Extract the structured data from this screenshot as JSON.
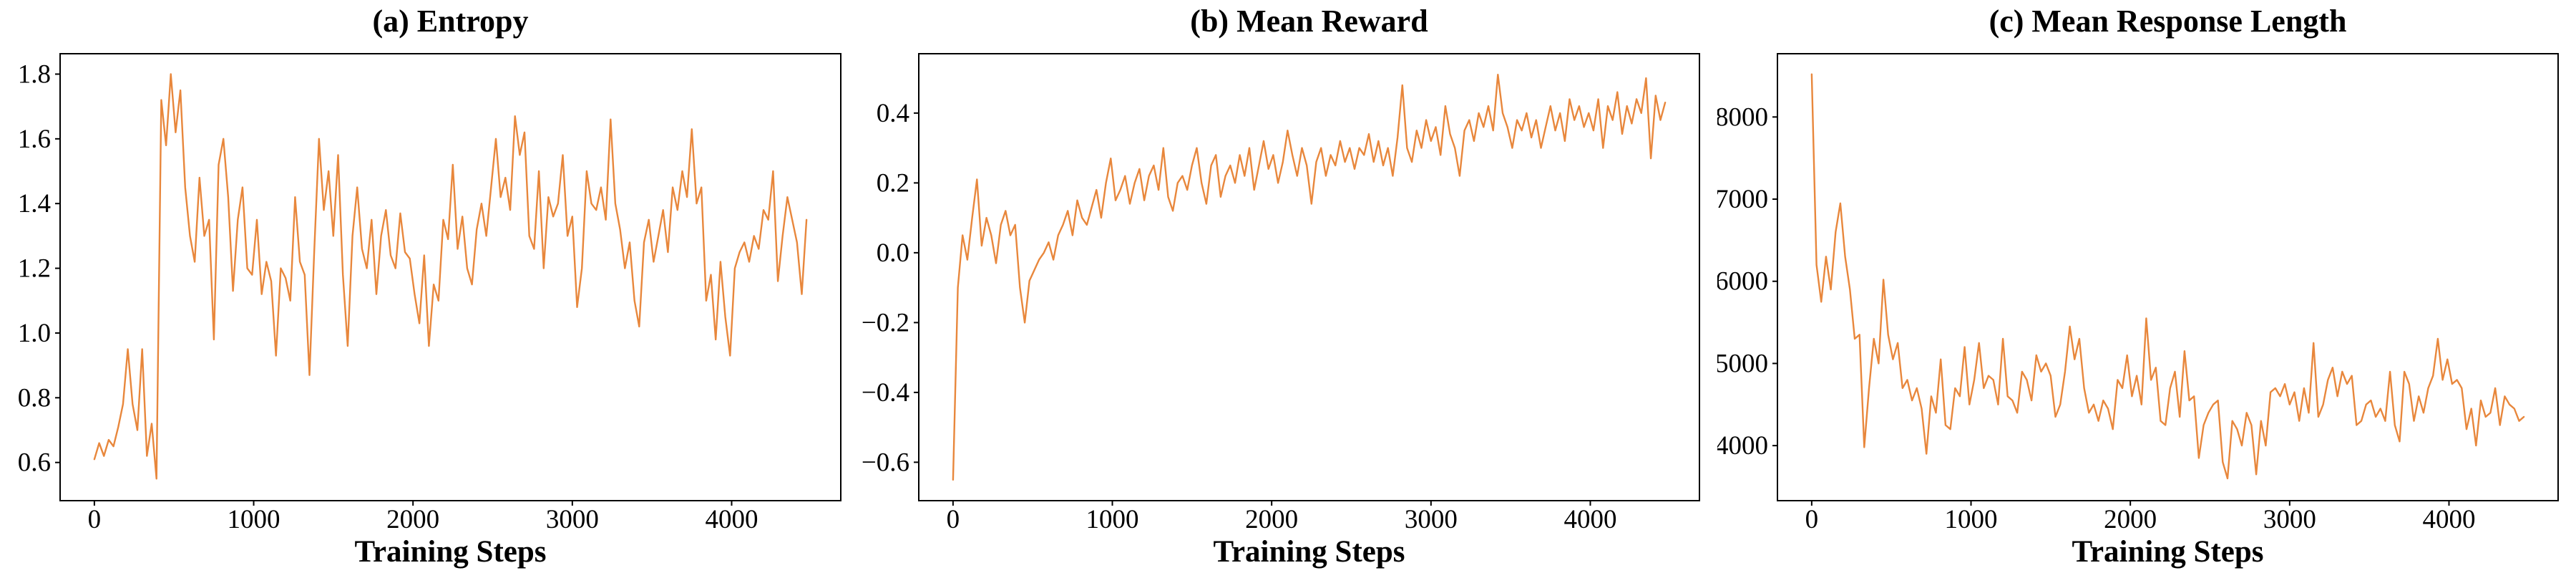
{
  "figure": {
    "background": "#ffffff",
    "axis_color": "#000000",
    "line_color": "#e8873c"
  },
  "chart_data": [
    {
      "type": "line",
      "title": "(a) Entropy",
      "xlabel": "Training Steps",
      "ylabel": "",
      "color": "#e8873c",
      "grid": false,
      "legend": "none",
      "xlim": [
        -215,
        4685
      ],
      "ylim": [
        0.482,
        1.863
      ],
      "xticks": [
        0,
        1000,
        2000,
        3000,
        4000
      ],
      "xtick_labels": [
        "0",
        "1000",
        "2000",
        "3000",
        "4000"
      ],
      "yticks": [
        0.6,
        0.8,
        1.0,
        1.2,
        1.4,
        1.6,
        1.8
      ],
      "ytick_labels": [
        "0.6",
        "0.8",
        "1.0",
        "1.2",
        "1.4",
        "1.6",
        "1.8"
      ],
      "x_start": 0,
      "x_step": 30,
      "values": [
        0.61,
        0.66,
        0.62,
        0.67,
        0.65,
        0.71,
        0.78,
        0.95,
        0.78,
        0.7,
        0.95,
        0.62,
        0.72,
        0.55,
        1.72,
        1.58,
        1.8,
        1.62,
        1.75,
        1.45,
        1.3,
        1.22,
        1.48,
        1.3,
        1.35,
        0.98,
        1.52,
        1.6,
        1.42,
        1.13,
        1.35,
        1.45,
        1.2,
        1.18,
        1.35,
        1.12,
        1.22,
        1.16,
        0.93,
        1.2,
        1.17,
        1.1,
        1.42,
        1.22,
        1.18,
        0.87,
        1.25,
        1.6,
        1.38,
        1.5,
        1.3,
        1.55,
        1.18,
        0.96,
        1.3,
        1.45,
        1.26,
        1.2,
        1.35,
        1.12,
        1.3,
        1.38,
        1.24,
        1.2,
        1.37,
        1.25,
        1.23,
        1.12,
        1.03,
        1.24,
        0.96,
        1.15,
        1.1,
        1.35,
        1.29,
        1.52,
        1.26,
        1.36,
        1.2,
        1.15,
        1.32,
        1.4,
        1.3,
        1.45,
        1.6,
        1.42,
        1.48,
        1.38,
        1.67,
        1.55,
        1.62,
        1.3,
        1.26,
        1.5,
        1.2,
        1.42,
        1.36,
        1.4,
        1.55,
        1.3,
        1.36,
        1.08,
        1.2,
        1.5,
        1.4,
        1.38,
        1.45,
        1.35,
        1.66,
        1.4,
        1.32,
        1.2,
        1.28,
        1.1,
        1.02,
        1.28,
        1.35,
        1.22,
        1.3,
        1.38,
        1.25,
        1.45,
        1.38,
        1.5,
        1.42,
        1.63,
        1.4,
        1.45,
        1.1,
        1.18,
        0.98,
        1.22,
        1.05,
        0.93,
        1.2,
        1.25,
        1.28,
        1.22,
        1.3,
        1.26,
        1.38,
        1.35,
        1.5,
        1.16,
        1.3,
        1.42,
        1.35,
        1.28,
        1.12,
        1.35
      ]
    },
    {
      "type": "line",
      "title": "(b) Mean Reward",
      "xlabel": "Training Steps",
      "ylabel": "",
      "color": "#e8873c",
      "grid": false,
      "legend": "none",
      "xlim": [
        -215,
        4685
      ],
      "ylim": [
        -0.71,
        0.57
      ],
      "xticks": [
        0,
        1000,
        2000,
        3000,
        4000
      ],
      "xtick_labels": [
        "0",
        "1000",
        "2000",
        "3000",
        "4000"
      ],
      "yticks": [
        -0.6,
        -0.4,
        -0.2,
        0.0,
        0.2,
        0.4
      ],
      "ytick_labels": [
        "−0.6",
        "−0.4",
        "−0.2",
        "0.0",
        "0.2",
        "0.4"
      ],
      "x_start": 0,
      "x_step": 30,
      "values": [
        -0.65,
        -0.1,
        0.05,
        -0.02,
        0.1,
        0.21,
        0.02,
        0.1,
        0.05,
        -0.03,
        0.08,
        0.12,
        0.05,
        0.08,
        -0.1,
        -0.2,
        -0.08,
        -0.05,
        -0.02,
        0.0,
        0.03,
        -0.02,
        0.05,
        0.08,
        0.12,
        0.05,
        0.15,
        0.1,
        0.08,
        0.13,
        0.18,
        0.1,
        0.2,
        0.27,
        0.15,
        0.18,
        0.22,
        0.14,
        0.2,
        0.24,
        0.15,
        0.22,
        0.25,
        0.18,
        0.3,
        0.16,
        0.12,
        0.2,
        0.22,
        0.18,
        0.25,
        0.3,
        0.2,
        0.14,
        0.25,
        0.28,
        0.16,
        0.22,
        0.25,
        0.2,
        0.28,
        0.22,
        0.3,
        0.18,
        0.25,
        0.32,
        0.24,
        0.28,
        0.2,
        0.26,
        0.35,
        0.28,
        0.22,
        0.3,
        0.25,
        0.14,
        0.26,
        0.3,
        0.22,
        0.28,
        0.25,
        0.32,
        0.26,
        0.3,
        0.24,
        0.3,
        0.28,
        0.34,
        0.26,
        0.32,
        0.25,
        0.3,
        0.22,
        0.33,
        0.48,
        0.3,
        0.26,
        0.35,
        0.3,
        0.38,
        0.32,
        0.36,
        0.28,
        0.42,
        0.34,
        0.3,
        0.22,
        0.35,
        0.38,
        0.32,
        0.4,
        0.36,
        0.42,
        0.35,
        0.51,
        0.4,
        0.36,
        0.3,
        0.38,
        0.35,
        0.4,
        0.33,
        0.38,
        0.3,
        0.36,
        0.42,
        0.35,
        0.4,
        0.32,
        0.44,
        0.38,
        0.42,
        0.36,
        0.4,
        0.35,
        0.44,
        0.3,
        0.42,
        0.38,
        0.46,
        0.34,
        0.42,
        0.37,
        0.44,
        0.4,
        0.5,
        0.27,
        0.45,
        0.38,
        0.43
      ]
    },
    {
      "type": "line",
      "title": "(c) Mean Response Length",
      "xlabel": "Training Steps",
      "ylabel": "",
      "color": "#e8873c",
      "grid": false,
      "legend": "none",
      "xlim": [
        -215,
        4685
      ],
      "ylim": [
        3330,
        8770
      ],
      "xticks": [
        0,
        1000,
        2000,
        3000,
        4000
      ],
      "xtick_labels": [
        "0",
        "1000",
        "2000",
        "3000",
        "4000"
      ],
      "yticks": [
        4000,
        5000,
        6000,
        7000,
        8000
      ],
      "ytick_labels": [
        "4000",
        "5000",
        "6000",
        "7000",
        "8000"
      ],
      "x_start": 0,
      "x_step": 30,
      "values": [
        8520,
        6200,
        5750,
        6300,
        5900,
        6600,
        6950,
        6300,
        5900,
        5300,
        5350,
        3980,
        4700,
        5300,
        5000,
        6020,
        5350,
        5050,
        5250,
        4700,
        4800,
        4550,
        4700,
        4450,
        3900,
        4600,
        4400,
        5050,
        4250,
        4200,
        4700,
        4600,
        5200,
        4500,
        4800,
        5250,
        4700,
        4850,
        4800,
        4500,
        5300,
        4600,
        4550,
        4400,
        4900,
        4800,
        4550,
        5100,
        4900,
        5000,
        4850,
        4350,
        4500,
        4900,
        5450,
        5050,
        5300,
        4700,
        4400,
        4500,
        4300,
        4550,
        4450,
        4200,
        4800,
        4700,
        5100,
        4600,
        4850,
        4500,
        5550,
        4800,
        4950,
        4300,
        4250,
        4700,
        4900,
        4350,
        5150,
        4550,
        4600,
        3850,
        4250,
        4400,
        4500,
        4550,
        3800,
        3600,
        4300,
        4200,
        4000,
        4400,
        4250,
        3650,
        4300,
        4000,
        4650,
        4700,
        4600,
        4750,
        4500,
        4650,
        4300,
        4700,
        4400,
        5250,
        4350,
        4500,
        4800,
        4950,
        4600,
        4900,
        4750,
        4850,
        4250,
        4300,
        4500,
        4550,
        4350,
        4450,
        4300,
        4900,
        4250,
        4050,
        4900,
        4750,
        4300,
        4600,
        4400,
        4700,
        4850,
        5300,
        4800,
        5050,
        4750,
        4800,
        4700,
        4200,
        4450,
        4000,
        4550,
        4350,
        4400,
        4700,
        4250,
        4600,
        4500,
        4450,
        4300,
        4350
      ]
    }
  ]
}
